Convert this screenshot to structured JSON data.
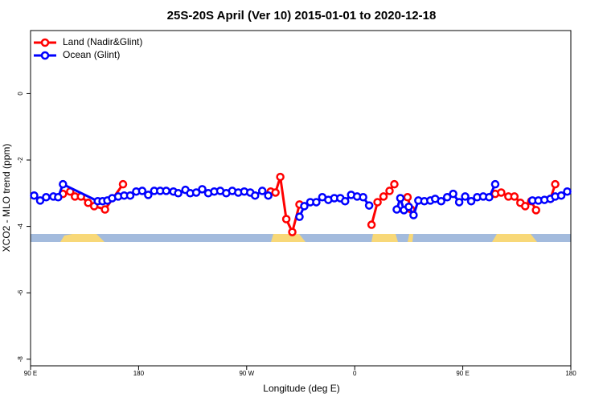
{
  "chart_data": {
    "type": "line",
    "title": "25S-20S April (Ver 10)   2015-01-01 to 2020-12-18",
    "x_label": "Longitude (deg E)",
    "y_label": "XCO2 - MLO trend (ppm)",
    "xlim": [
      90,
      540
    ],
    "ylim": [
      -8.2,
      1.9
    ],
    "xticks": [
      {
        "value": 90,
        "label": "90 E"
      },
      180,
      {
        "value": 270,
        "label": "90 W"
      },
      {
        "value": 360,
        "label": "0"
      },
      {
        "value": 450,
        "label": "90 E"
      },
      180
    ],
    "yticks": [
      -8,
      -6,
      -4,
      -2,
      0
    ],
    "legend": "top-left",
    "series": [
      {
        "name": "Land (Nadir&Glint)",
        "color": "#ff0000",
        "x": [
          117,
          123,
          127,
          132,
          138,
          143,
          152,
          167,
          null,
          290,
          294,
          298,
          303,
          308,
          314,
          null,
          374,
          379,
          384,
          389,
          393,
          null,
          404,
          407,
          null,
          477,
          482,
          488,
          493,
          498,
          502,
          507,
          511,
          null,
          523,
          527
        ],
        "values": [
          -3.02,
          -2.95,
          -3.1,
          -3.1,
          -3.29,
          -3.39,
          -3.49,
          -2.73,
          null,
          -2.95,
          -2.98,
          -2.51,
          -3.78,
          -4.17,
          -3.34,
          null,
          -3.95,
          -3.27,
          -3.1,
          -2.93,
          -2.73,
          null,
          -3.12,
          -3.49,
          null,
          -3.02,
          -2.98,
          -3.1,
          -3.1,
          -3.29,
          -3.39,
          -3.24,
          -3.51,
          null,
          -3.17,
          -2.73
        ]
      },
      {
        "name": "Ocean (Glint)",
        "color": "#0000ff",
        "x": [
          93,
          98,
          103,
          109,
          113,
          117,
          146,
          150,
          154,
          158,
          163,
          168,
          173,
          178,
          183,
          188,
          193,
          198,
          203,
          209,
          213,
          219,
          223,
          228,
          233,
          238,
          243,
          248,
          253,
          258,
          263,
          268,
          273,
          277,
          283,
          288,
          null,
          314,
          318,
          323,
          328,
          333,
          338,
          343,
          348,
          352,
          357,
          362,
          367,
          372,
          null,
          395,
          398,
          401,
          405,
          409,
          413,
          418,
          423,
          427,
          432,
          437,
          442,
          447,
          452,
          457,
          462,
          467,
          472,
          477,
          null,
          508,
          513,
          518,
          523,
          527,
          532,
          537
        ],
        "values": [
          -3.07,
          -3.22,
          -3.12,
          -3.1,
          -3.12,
          -2.73,
          -3.24,
          -3.24,
          -3.22,
          -3.15,
          -3.1,
          -3.07,
          -3.07,
          -2.95,
          -2.93,
          -3.05,
          -2.93,
          -2.93,
          -2.93,
          -2.95,
          -3.0,
          -2.9,
          -3.0,
          -2.98,
          -2.88,
          -3.0,
          -2.95,
          -2.93,
          -3.0,
          -2.93,
          -2.98,
          -2.95,
          -2.98,
          -3.07,
          -2.93,
          -3.07,
          null,
          -3.71,
          -3.39,
          -3.27,
          -3.27,
          -3.12,
          -3.2,
          -3.15,
          -3.15,
          -3.24,
          -3.05,
          -3.1,
          -3.12,
          -3.37,
          null,
          -3.49,
          -3.15,
          -3.51,
          -3.41,
          -3.66,
          -3.22,
          -3.24,
          -3.22,
          -3.17,
          -3.24,
          -3.12,
          -3.02,
          -3.27,
          -3.1,
          -3.24,
          -3.12,
          -3.1,
          -3.12,
          -2.73,
          null,
          -3.22,
          -3.22,
          -3.2,
          -3.17,
          -3.1,
          -3.07,
          -2.95
        ]
      }
    ]
  }
}
